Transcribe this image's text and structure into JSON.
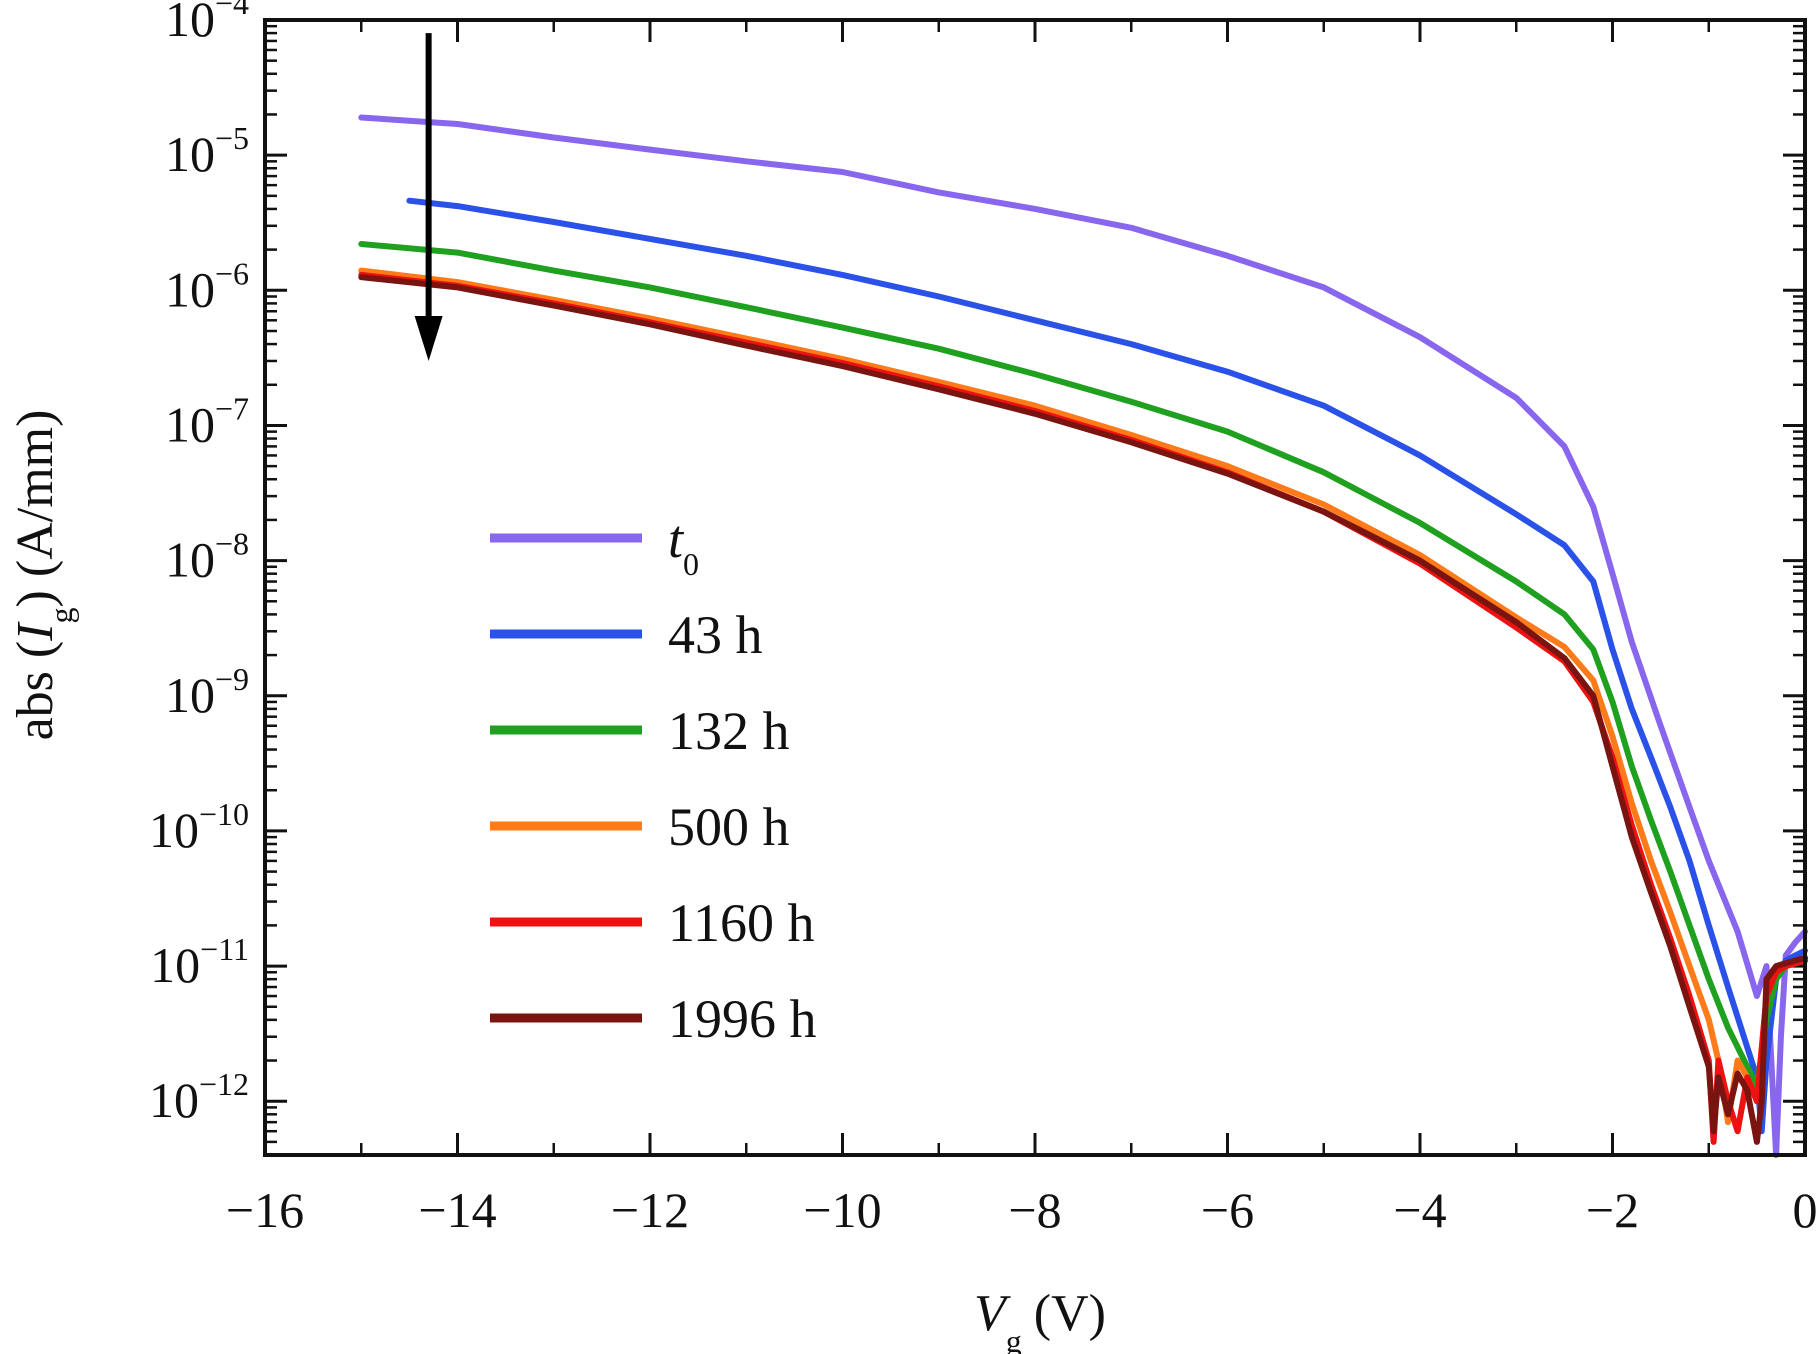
{
  "chart_data": {
    "type": "line",
    "x_label": {
      "symbol": "V",
      "subscript": "g",
      "unit": "(V)"
    },
    "y_label": {
      "prefix": "abs (",
      "symbol": "I",
      "subscript": "g",
      "suffix": ") (A/mm)"
    },
    "xlim": [
      -16,
      0
    ],
    "y_scale": "log",
    "ylim": [
      4e-13,
      0.0001
    ],
    "x_ticks": [
      {
        "value": -16,
        "label": "−16"
      },
      {
        "value": -14,
        "label": "−14"
      },
      {
        "value": -12,
        "label": "−12"
      },
      {
        "value": -10,
        "label": "−10"
      },
      {
        "value": -8,
        "label": "−8"
      },
      {
        "value": -6,
        "label": "−6"
      },
      {
        "value": -4,
        "label": "−4"
      },
      {
        "value": -2,
        "label": "−2"
      },
      {
        "value": 0,
        "label": "0"
      }
    ],
    "y_ticks": [
      {
        "value": 0.0001,
        "base": "10",
        "exp": "−4"
      },
      {
        "value": 1e-05,
        "base": "10",
        "exp": "−5"
      },
      {
        "value": 1e-06,
        "base": "10",
        "exp": "−6"
      },
      {
        "value": 1e-07,
        "base": "10",
        "exp": "−7"
      },
      {
        "value": 1e-08,
        "base": "10",
        "exp": "−8"
      },
      {
        "value": 1e-09,
        "base": "10",
        "exp": "−9"
      },
      {
        "value": 1e-10,
        "base": "10",
        "exp": "−10"
      },
      {
        "value": 1e-11,
        "base": "10",
        "exp": "−11"
      },
      {
        "value": 1e-12,
        "base": "10",
        "exp": "−12"
      }
    ],
    "legend_position": "lower-left inside",
    "arrow": {
      "x": -14.3,
      "y_start": 8e-05,
      "y_end": 3e-07
    },
    "series": [
      {
        "name": "t",
        "name_sub": "0",
        "name_italic": true,
        "color": "#8866ee",
        "points": [
          [
            -15,
            1.9e-05
          ],
          [
            -14,
            1.7e-05
          ],
          [
            -13,
            1.35e-05
          ],
          [
            -12,
            1.1e-05
          ],
          [
            -11,
            9e-06
          ],
          [
            -10,
            7.5e-06
          ],
          [
            -9,
            5.3e-06
          ],
          [
            -8,
            4e-06
          ],
          [
            -7,
            2.9e-06
          ],
          [
            -6,
            1.8e-06
          ],
          [
            -5,
            1.05e-06
          ],
          [
            -4,
            4.5e-07
          ],
          [
            -3,
            1.6e-07
          ],
          [
            -2.5,
            7e-08
          ],
          [
            -2.2,
            2.5e-08
          ],
          [
            -2,
            8e-09
          ],
          [
            -1.8,
            2.5e-09
          ],
          [
            -1.5,
            6e-10
          ],
          [
            -1.2,
            1.5e-10
          ],
          [
            -1,
            6e-11
          ],
          [
            -0.7,
            1.8e-11
          ],
          [
            -0.5,
            6e-12
          ],
          [
            -0.4,
            1e-11
          ],
          [
            -0.35,
            2e-12
          ],
          [
            -0.3,
            4e-13
          ],
          [
            -0.25,
            3e-12
          ],
          [
            -0.2,
            1.2e-11
          ],
          [
            -0.1,
            1.5e-11
          ],
          [
            0,
            1.8e-11
          ]
        ]
      },
      {
        "name": "43 h",
        "color": "#2a52e8",
        "points": [
          [
            -14.5,
            4.6e-06
          ],
          [
            -14,
            4.2e-06
          ],
          [
            -13,
            3.2e-06
          ],
          [
            -12,
            2.4e-06
          ],
          [
            -11,
            1.8e-06
          ],
          [
            -10,
            1.3e-06
          ],
          [
            -9,
            9e-07
          ],
          [
            -8,
            6e-07
          ],
          [
            -7,
            4e-07
          ],
          [
            -6,
            2.5e-07
          ],
          [
            -5,
            1.4e-07
          ],
          [
            -4,
            6e-08
          ],
          [
            -3,
            2.2e-08
          ],
          [
            -2.5,
            1.3e-08
          ],
          [
            -2.2,
            7e-09
          ],
          [
            -2,
            2.2e-09
          ],
          [
            -1.8,
            8e-10
          ],
          [
            -1.6,
            3.5e-10
          ],
          [
            -1.4,
            1.5e-10
          ],
          [
            -1.2,
            6e-11
          ],
          [
            -1,
            2e-11
          ],
          [
            -0.8,
            7e-12
          ],
          [
            -0.6,
            2.5e-12
          ],
          [
            -0.5,
            1.5e-12
          ],
          [
            -0.45,
            6e-13
          ],
          [
            -0.4,
            2e-12
          ],
          [
            -0.3,
            8e-12
          ],
          [
            -0.2,
            1.1e-11
          ],
          [
            -0.1,
            1.2e-11
          ],
          [
            0,
            1.3e-11
          ]
        ]
      },
      {
        "name": "132 h",
        "color": "#1fa01f",
        "points": [
          [
            -15,
            2.2e-06
          ],
          [
            -14,
            1.9e-06
          ],
          [
            -13,
            1.4e-06
          ],
          [
            -12,
            1.05e-06
          ],
          [
            -11,
            7.5e-07
          ],
          [
            -10,
            5.3e-07
          ],
          [
            -9,
            3.7e-07
          ],
          [
            -8,
            2.4e-07
          ],
          [
            -7,
            1.5e-07
          ],
          [
            -6,
            9e-08
          ],
          [
            -5,
            4.5e-08
          ],
          [
            -4,
            1.9e-08
          ],
          [
            -3,
            7e-09
          ],
          [
            -2.5,
            4e-09
          ],
          [
            -2.2,
            2.2e-09
          ],
          [
            -2,
            9e-10
          ],
          [
            -1.8,
            3e-10
          ],
          [
            -1.6,
            1.2e-10
          ],
          [
            -1.4,
            5e-11
          ],
          [
            -1.2,
            2e-11
          ],
          [
            -1,
            8e-12
          ],
          [
            -0.8,
            3.5e-12
          ],
          [
            -0.6,
            1.8e-12
          ],
          [
            -0.5,
            1.3e-12
          ],
          [
            -0.4,
            4e-12
          ],
          [
            -0.3,
            8e-12
          ],
          [
            -0.2,
            1e-11
          ],
          [
            -0.1,
            1.05e-11
          ],
          [
            0,
            1.1e-11
          ]
        ]
      },
      {
        "name": "500 h",
        "color": "#ff7a18",
        "points": [
          [
            -15,
            1.4e-06
          ],
          [
            -14,
            1.15e-06
          ],
          [
            -13,
            8.5e-07
          ],
          [
            -12,
            6.2e-07
          ],
          [
            -11,
            4.4e-07
          ],
          [
            -10,
            3.1e-07
          ],
          [
            -9,
            2.1e-07
          ],
          [
            -8,
            1.4e-07
          ],
          [
            -7,
            8.5e-08
          ],
          [
            -6,
            5e-08
          ],
          [
            -5,
            2.6e-08
          ],
          [
            -4,
            1.1e-08
          ],
          [
            -3,
            3.8e-09
          ],
          [
            -2.5,
            2.3e-09
          ],
          [
            -2.2,
            1.3e-09
          ],
          [
            -2,
            5e-10
          ],
          [
            -1.8,
            1.6e-10
          ],
          [
            -1.6,
            6e-11
          ],
          [
            -1.4,
            2.5e-11
          ],
          [
            -1.2,
            1e-11
          ],
          [
            -1,
            4e-12
          ],
          [
            -0.9,
            2e-12
          ],
          [
            -0.8,
            7e-13
          ],
          [
            -0.7,
            2e-12
          ],
          [
            -0.6,
            1.5e-12
          ],
          [
            -0.5,
            1e-12
          ],
          [
            -0.4,
            6e-12
          ],
          [
            -0.3,
            9e-12
          ],
          [
            -0.2,
            1e-11
          ],
          [
            -0.1,
            1.05e-11
          ],
          [
            0,
            1.1e-11
          ]
        ]
      },
      {
        "name": "1160 h",
        "color": "#ee1111",
        "points": [
          [
            -15,
            1.3e-06
          ],
          [
            -14,
            1.08e-06
          ],
          [
            -13,
            8e-07
          ],
          [
            -12,
            5.8e-07
          ],
          [
            -11,
            4.1e-07
          ],
          [
            -10,
            2.9e-07
          ],
          [
            -9,
            1.95e-07
          ],
          [
            -8,
            1.28e-07
          ],
          [
            -7,
            7.8e-08
          ],
          [
            -6,
            4.5e-08
          ],
          [
            -5,
            2.3e-08
          ],
          [
            -4,
            9.5e-09
          ],
          [
            -3,
            3.2e-09
          ],
          [
            -2.5,
            1.8e-09
          ],
          [
            -2.2,
            9e-10
          ],
          [
            -2,
            3.5e-10
          ],
          [
            -1.8,
            1.1e-10
          ],
          [
            -1.6,
            4e-11
          ],
          [
            -1.4,
            1.6e-11
          ],
          [
            -1.2,
            6e-12
          ],
          [
            -1,
            2e-12
          ],
          [
            -0.95,
            5e-13
          ],
          [
            -0.9,
            2e-12
          ],
          [
            -0.8,
            1e-12
          ],
          [
            -0.7,
            6e-13
          ],
          [
            -0.6,
            1.5e-12
          ],
          [
            -0.5,
            1e-12
          ],
          [
            -0.4,
            6e-12
          ],
          [
            -0.3,
            9e-12
          ],
          [
            -0.2,
            1e-11
          ],
          [
            -0.1,
            1.05e-11
          ],
          [
            0,
            1.1e-11
          ]
        ]
      },
      {
        "name": "1996 h",
        "color": "#7a1410",
        "points": [
          [
            -15,
            1.25e-06
          ],
          [
            -14,
            1.05e-06
          ],
          [
            -13,
            7.7e-07
          ],
          [
            -12,
            5.6e-07
          ],
          [
            -11,
            3.9e-07
          ],
          [
            -10,
            2.75e-07
          ],
          [
            -9,
            1.85e-07
          ],
          [
            -8,
            1.22e-07
          ],
          [
            -7,
            7.5e-08
          ],
          [
            -6,
            4.4e-08
          ],
          [
            -5,
            2.3e-08
          ],
          [
            -4,
            1e-08
          ],
          [
            -3,
            3.5e-09
          ],
          [
            -2.5,
            1.9e-09
          ],
          [
            -2.2,
            1e-09
          ],
          [
            -2,
            3e-10
          ],
          [
            -1.8,
            9e-11
          ],
          [
            -1.6,
            3.5e-11
          ],
          [
            -1.4,
            1.4e-11
          ],
          [
            -1.2,
            5e-12
          ],
          [
            -1,
            1.8e-12
          ],
          [
            -0.95,
            6e-13
          ],
          [
            -0.9,
            1.5e-12
          ],
          [
            -0.8,
            8e-13
          ],
          [
            -0.7,
            1.6e-12
          ],
          [
            -0.6,
            1.2e-12
          ],
          [
            -0.5,
            5e-13
          ],
          [
            -0.45,
            1e-12
          ],
          [
            -0.4,
            8e-12
          ],
          [
            -0.3,
            1e-11
          ],
          [
            -0.2,
            1.05e-11
          ],
          [
            -0.1,
            1.1e-11
          ],
          [
            0,
            1.15e-11
          ]
        ]
      }
    ]
  }
}
